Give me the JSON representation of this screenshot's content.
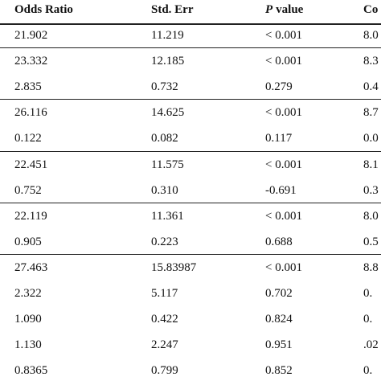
{
  "table": {
    "header": [
      "Odds Ratio",
      "Std. Err",
      [
        "P",
        "value"
      ],
      "Co"
    ],
    "groups": [
      [
        [
          "21.902",
          "11.219",
          "< 0.001",
          "8.0"
        ]
      ],
      [
        [
          "23.332",
          "12.185",
          "< 0.001",
          "8.3"
        ],
        [
          "2.835",
          "0.732",
          "0.279",
          "0.4"
        ]
      ],
      [
        [
          "26.116",
          "14.625",
          "< 0.001",
          "8.7"
        ],
        [
          "0.122",
          "0.082",
          "0.117",
          "0.0"
        ]
      ],
      [
        [
          "22.451",
          "11.575",
          "< 0.001",
          "8.1"
        ],
        [
          "0.752",
          "0.310",
          "-0.691",
          "0.3"
        ]
      ],
      [
        [
          "22.119",
          "11.361",
          "< 0.001",
          "8.0"
        ],
        [
          "0.905",
          "0.223",
          "0.688",
          "0.5"
        ]
      ],
      [
        [
          "27.463",
          "15.83987",
          "< 0.001",
          "8.8"
        ],
        [
          "2.322",
          "5.117",
          "0.702",
          "0."
        ],
        [
          "1.090",
          "0.422",
          "0.824",
          "0."
        ],
        [
          "1.130",
          "2.247",
          "0.951",
          ".02"
        ],
        [
          "0.8365",
          "0.799",
          "0.852",
          "0."
        ]
      ]
    ]
  }
}
